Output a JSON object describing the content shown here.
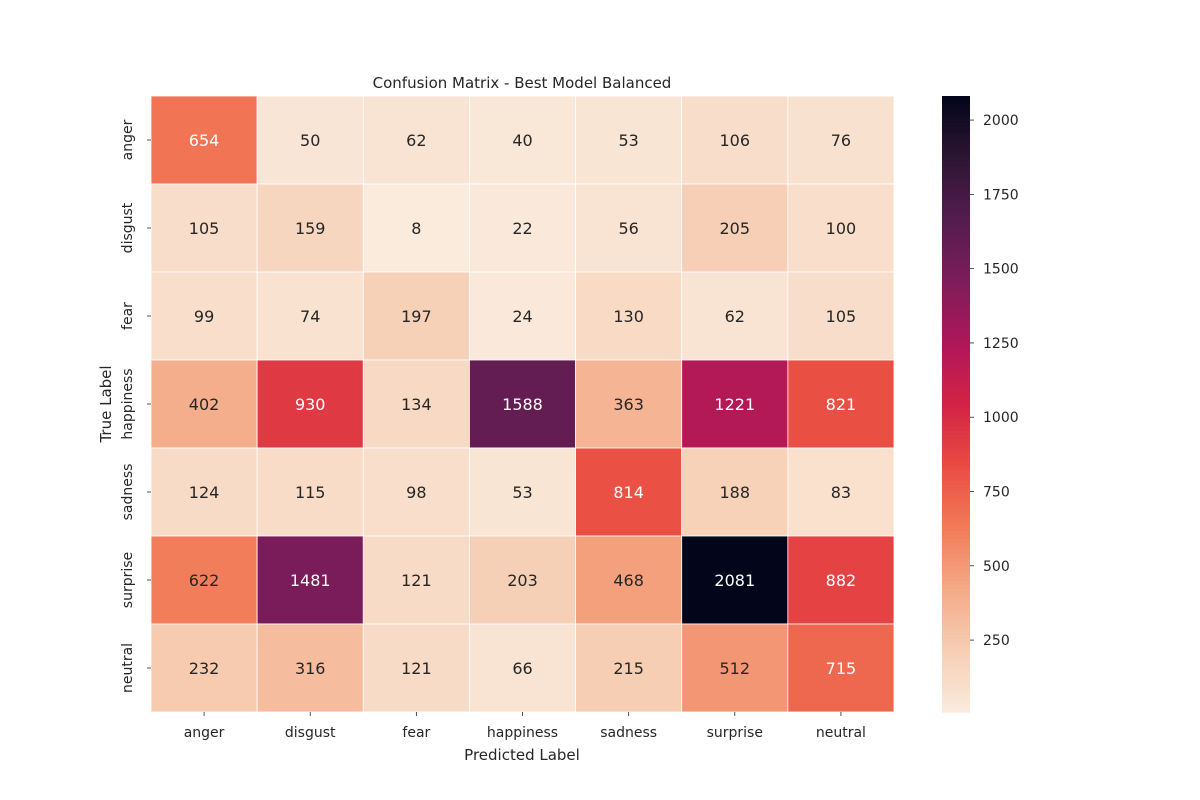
{
  "chart_data": {
    "type": "heatmap",
    "title": "Confusion Matrix - Best Model Balanced",
    "xlabel": "Predicted Label",
    "ylabel": "True Label",
    "x_categories": [
      "anger",
      "disgust",
      "fear",
      "happiness",
      "sadness",
      "surprise",
      "neutral"
    ],
    "y_categories": [
      "anger",
      "disgust",
      "fear",
      "happiness",
      "sadness",
      "surprise",
      "neutral"
    ],
    "values": [
      [
        654,
        50,
        62,
        40,
        53,
        106,
        76
      ],
      [
        105,
        159,
        8,
        22,
        56,
        205,
        100
      ],
      [
        99,
        74,
        197,
        24,
        130,
        62,
        105
      ],
      [
        402,
        930,
        134,
        1588,
        363,
        1221,
        821
      ],
      [
        124,
        115,
        98,
        53,
        814,
        188,
        83
      ],
      [
        622,
        1481,
        121,
        203,
        468,
        2081,
        882
      ],
      [
        232,
        316,
        121,
        66,
        215,
        512,
        715
      ]
    ],
    "colorbar": {
      "min": 8,
      "max": 2081,
      "ticks": [
        250,
        500,
        750,
        1000,
        1250,
        1500,
        1750,
        2000
      ],
      "colormap": "rocket_r"
    },
    "grid": false,
    "legend": "colorbar-right"
  }
}
